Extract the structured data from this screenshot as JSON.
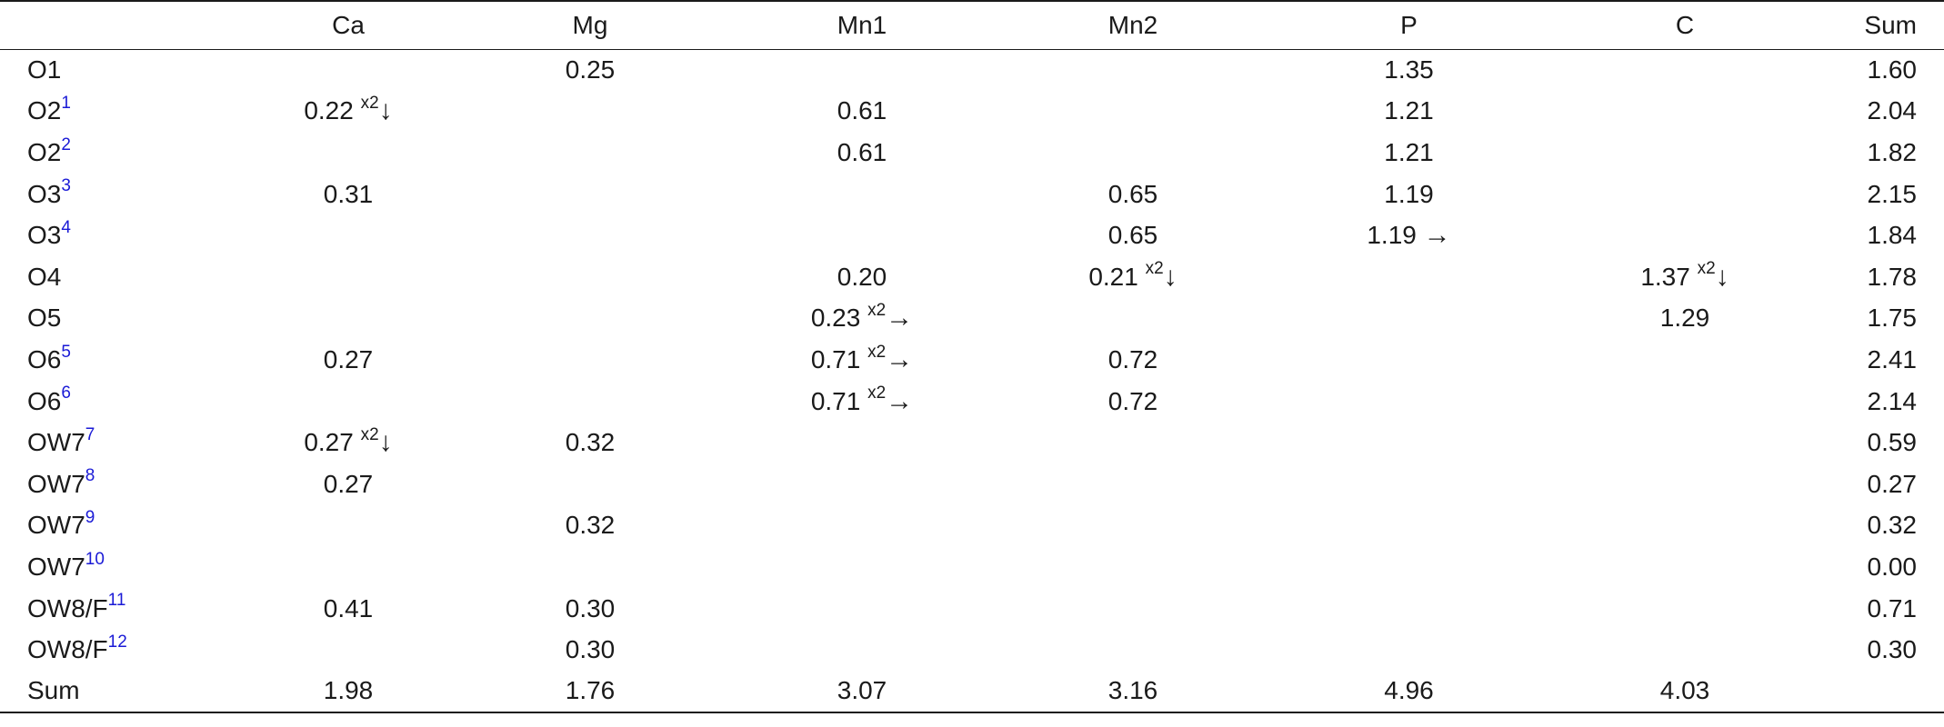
{
  "columns": [
    "",
    "Ca",
    "Mg",
    "Mn1",
    "Mn2",
    "P",
    "C",
    "Sum"
  ],
  "rows": [
    {
      "label": "O1",
      "ref": "",
      "cells": [
        {
          "v": ""
        },
        {
          "v": "0.25"
        },
        {
          "v": ""
        },
        {
          "v": ""
        },
        {
          "v": "1.35"
        },
        {
          "v": ""
        }
      ],
      "sum": "1.60"
    },
    {
      "label": "O2",
      "ref": "1",
      "cells": [
        {
          "v": "0.22",
          "mult": "x2",
          "arrow": "↓"
        },
        {
          "v": ""
        },
        {
          "v": "0.61"
        },
        {
          "v": ""
        },
        {
          "v": "1.21"
        },
        {
          "v": ""
        }
      ],
      "sum": "2.04"
    },
    {
      "label": "O2",
      "ref": "2",
      "cells": [
        {
          "v": ""
        },
        {
          "v": ""
        },
        {
          "v": "0.61"
        },
        {
          "v": ""
        },
        {
          "v": "1.21"
        },
        {
          "v": ""
        }
      ],
      "sum": "1.82"
    },
    {
      "label": "O3",
      "ref": "3",
      "cells": [
        {
          "v": "0.31"
        },
        {
          "v": ""
        },
        {
          "v": ""
        },
        {
          "v": "0.65"
        },
        {
          "v": "1.19"
        },
        {
          "v": ""
        }
      ],
      "sum": "2.15"
    },
    {
      "label": "O3",
      "ref": "4",
      "cells": [
        {
          "v": ""
        },
        {
          "v": ""
        },
        {
          "v": ""
        },
        {
          "v": "0.65"
        },
        {
          "v": "1.19",
          "arrow": "→"
        },
        {
          "v": ""
        }
      ],
      "sum": "1.84"
    },
    {
      "label": "O4",
      "ref": "",
      "cells": [
        {
          "v": ""
        },
        {
          "v": ""
        },
        {
          "v": "0.20"
        },
        {
          "v": "0.21",
          "mult": "x2",
          "arrow": "↓"
        },
        {
          "v": ""
        },
        {
          "v": "1.37",
          "mult": "x2",
          "arrow": "↓"
        }
      ],
      "sum": "1.78"
    },
    {
      "label": "O5",
      "ref": "",
      "cells": [
        {
          "v": ""
        },
        {
          "v": ""
        },
        {
          "v": "0.23",
          "mult": "x2",
          "arrow": "→"
        },
        {
          "v": ""
        },
        {
          "v": ""
        },
        {
          "v": "1.29"
        }
      ],
      "sum": "1.75"
    },
    {
      "label": "O6",
      "ref": "5",
      "cells": [
        {
          "v": "0.27"
        },
        {
          "v": ""
        },
        {
          "v": "0.71",
          "mult": "x2",
          "arrow": "→"
        },
        {
          "v": "0.72"
        },
        {
          "v": ""
        },
        {
          "v": ""
        }
      ],
      "sum": "2.41"
    },
    {
      "label": "O6",
      "ref": "6",
      "cells": [
        {
          "v": ""
        },
        {
          "v": ""
        },
        {
          "v": "0.71",
          "mult": "x2",
          "arrow": "→"
        },
        {
          "v": "0.72"
        },
        {
          "v": ""
        },
        {
          "v": ""
        }
      ],
      "sum": "2.14"
    },
    {
      "label": "OW7",
      "ref": "7",
      "cells": [
        {
          "v": "0.27",
          "mult": "x2",
          "arrow": "↓"
        },
        {
          "v": "0.32"
        },
        {
          "v": ""
        },
        {
          "v": ""
        },
        {
          "v": ""
        },
        {
          "v": ""
        }
      ],
      "sum": "0.59"
    },
    {
      "label": "OW7",
      "ref": "8",
      "cells": [
        {
          "v": "0.27"
        },
        {
          "v": ""
        },
        {
          "v": ""
        },
        {
          "v": ""
        },
        {
          "v": ""
        },
        {
          "v": ""
        }
      ],
      "sum": "0.27"
    },
    {
      "label": "OW7",
      "ref": "9",
      "cells": [
        {
          "v": ""
        },
        {
          "v": "0.32"
        },
        {
          "v": ""
        },
        {
          "v": ""
        },
        {
          "v": ""
        },
        {
          "v": ""
        }
      ],
      "sum": "0.32"
    },
    {
      "label": "OW7",
      "ref": "10",
      "cells": [
        {
          "v": ""
        },
        {
          "v": ""
        },
        {
          "v": ""
        },
        {
          "v": ""
        },
        {
          "v": ""
        },
        {
          "v": ""
        }
      ],
      "sum": "0.00"
    },
    {
      "label": "OW8/F",
      "ref": "11",
      "cells": [
        {
          "v": "0.41"
        },
        {
          "v": "0.30"
        },
        {
          "v": ""
        },
        {
          "v": ""
        },
        {
          "v": ""
        },
        {
          "v": ""
        }
      ],
      "sum": "0.71"
    },
    {
      "label": "OW8/F",
      "ref": "12",
      "cells": [
        {
          "v": ""
        },
        {
          "v": "0.30"
        },
        {
          "v": ""
        },
        {
          "v": ""
        },
        {
          "v": ""
        },
        {
          "v": ""
        }
      ],
      "sum": "0.30"
    },
    {
      "label": "Sum",
      "ref": "",
      "cells": [
        {
          "v": "1.98"
        },
        {
          "v": "1.76"
        },
        {
          "v": "3.07"
        },
        {
          "v": "3.16"
        },
        {
          "v": "4.96"
        },
        {
          "v": "4.03"
        }
      ],
      "sum": ""
    }
  ],
  "colors": {
    "text": "#1a1a1a",
    "reference_link": "#1a1ad6",
    "rule": "#1a1a1a"
  }
}
